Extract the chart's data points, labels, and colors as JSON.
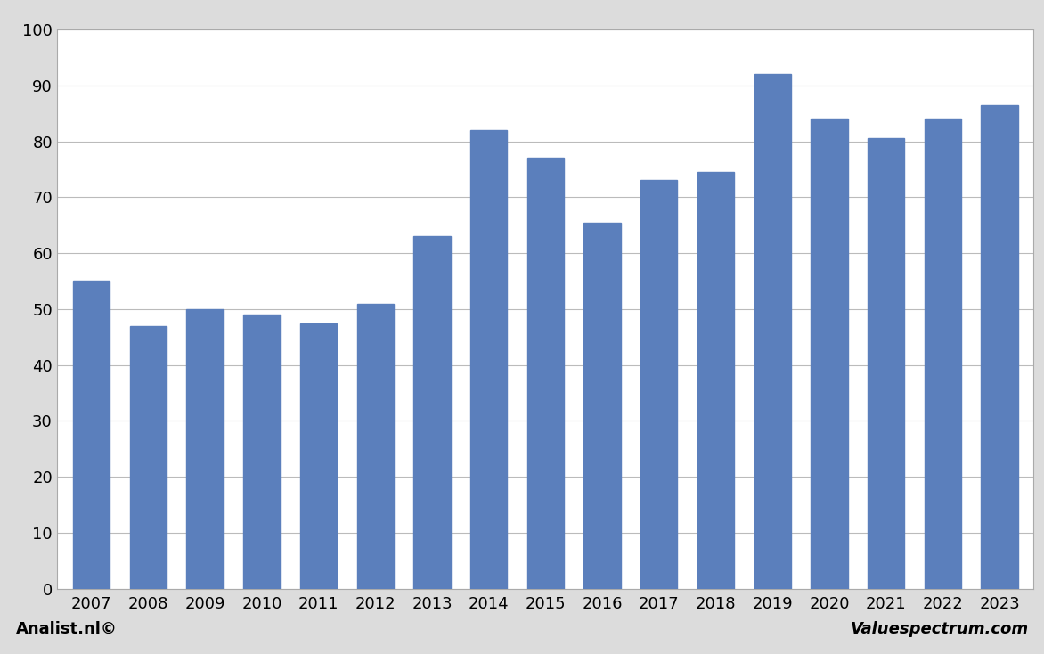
{
  "years": [
    2007,
    2008,
    2009,
    2010,
    2011,
    2012,
    2013,
    2014,
    2015,
    2016,
    2017,
    2018,
    2019,
    2020,
    2021,
    2022,
    2023
  ],
  "values": [
    55,
    47,
    50,
    49,
    47.5,
    51,
    63,
    82,
    77,
    65.5,
    73,
    74.5,
    92,
    84,
    80.5,
    84,
    86.5
  ],
  "bar_color": "#5b7fbc",
  "plot_bg_color": "#ffffff",
  "outer_bg_color": "#dcdcdc",
  "ylim": [
    0,
    100
  ],
  "yticks": [
    0,
    10,
    20,
    30,
    40,
    50,
    60,
    70,
    80,
    90,
    100
  ],
  "grid_color": "#bbbbbb",
  "footer_left": "Analist.nl©",
  "footer_right": "Valuespectrum.com",
  "footer_fontsize": 13,
  "tick_fontsize": 13,
  "bar_width": 0.65
}
